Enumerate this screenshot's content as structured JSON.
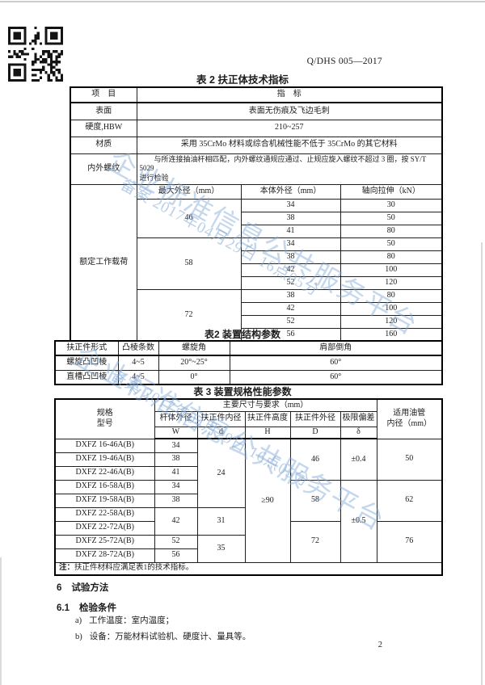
{
  "header": {
    "doc_no": "Q/DHS 005—2017"
  },
  "footer": {
    "page_number": "2"
  },
  "watermark": {
    "line1": "企业标准信息公共服务平台",
    "line2": "备案 2017年04月29日 16点05分",
    "color": "#7fa7d6"
  },
  "t1": {
    "caption": "表 2 扶正体技术指标",
    "col_item": "项　目",
    "col_value": "指　标",
    "rows": [
      {
        "k": "表面",
        "v": "表面无伤痕及飞边毛刺"
      },
      {
        "k": "硬度,HBW",
        "v": "210~257"
      },
      {
        "k": "材质",
        "v": "采用 35CrMo 材料或综合机械性能不低于 35CrMo 的其它材料"
      }
    ],
    "thread": {
      "k": "内外螺纹",
      "l1": "与所连接抽油杆相匹配，内外螺纹通规应通过、止规应旋入螺纹不超过 3 圈，按 SY/T 5029",
      "l2": "进行检验"
    },
    "load": {
      "k": "额定工作载荷",
      "h": [
        "最大外径（mm）",
        "本体外径（mm）",
        "轴向拉伸（kN）"
      ],
      "groups": [
        {
          "d": "46",
          "rows": [
            [
              "34",
              "30"
            ],
            [
              "38",
              "50"
            ],
            [
              "41",
              "80"
            ]
          ]
        },
        {
          "d": "58",
          "rows": [
            [
              "34",
              "50"
            ],
            [
              "38",
              "80"
            ],
            [
              "42",
              "100"
            ],
            [
              "52",
              "120"
            ]
          ]
        },
        {
          "d": "72",
          "rows": [
            [
              "38",
              "80"
            ],
            [
              "42",
              "100"
            ],
            [
              "52",
              "120"
            ],
            [
              "56",
              "160"
            ]
          ]
        }
      ]
    }
  },
  "t2": {
    "caption": "表2 装置结构参数",
    "h": [
      "扶正件形式",
      "凸棱条数",
      "螺旋角",
      "肩部倒角"
    ],
    "rows": [
      [
        "螺旋凸凹棱",
        "4~5",
        "20°~25°",
        "60°"
      ],
      [
        "直槽凸凹棱",
        "4~5",
        "0°",
        "60°"
      ]
    ]
  },
  "t3": {
    "caption": "表 3 装置规格性能参数",
    "spec1": "规格",
    "spec2": "型号",
    "dims": "主要尺寸与要求（mm）",
    "tub1": "适用油管",
    "tub2": "内径（mm）",
    "cols": [
      "杆体外径",
      "扶正件内径",
      "扶正件高度",
      "扶正件外径",
      "极限偏差"
    ],
    "syms": [
      "W",
      "d",
      "H",
      "D",
      "δ"
    ],
    "models": [
      "DXFZ 16-46A(B)",
      "DXFZ 19-46A(B)",
      "DXFZ 22-46A(B)",
      "DXFZ 16-58A(B)",
      "DXFZ 19-58A(B)",
      "DXFZ 22-58A(B)",
      "DXFZ 22-72A(B)",
      "DXFZ 25-72A(B)",
      "DXFZ 28-72A(B)"
    ],
    "W": [
      "34",
      "38",
      "41",
      "34",
      "38",
      "42",
      "52",
      "56"
    ],
    "d": [
      "24",
      "31",
      "35"
    ],
    "H": "≥90",
    "D": [
      "46",
      "58",
      "72"
    ],
    "delta": [
      "±0.4",
      "±0.5"
    ],
    "tubing": [
      "50",
      "62",
      "76"
    ],
    "note_label": "注：",
    "note_text": "扶正件材料应满足表1的技术指标。"
  },
  "sections": {
    "s6_num": "6",
    "s6_text": "试验方法",
    "s61_num": "6.1",
    "s61_text": "检验条件",
    "a_num": "a)",
    "a_text": "工作温度：室内温度；",
    "b_num": "b)",
    "b_text": "设备：万能材料试验机、硬度计、量具等。"
  }
}
